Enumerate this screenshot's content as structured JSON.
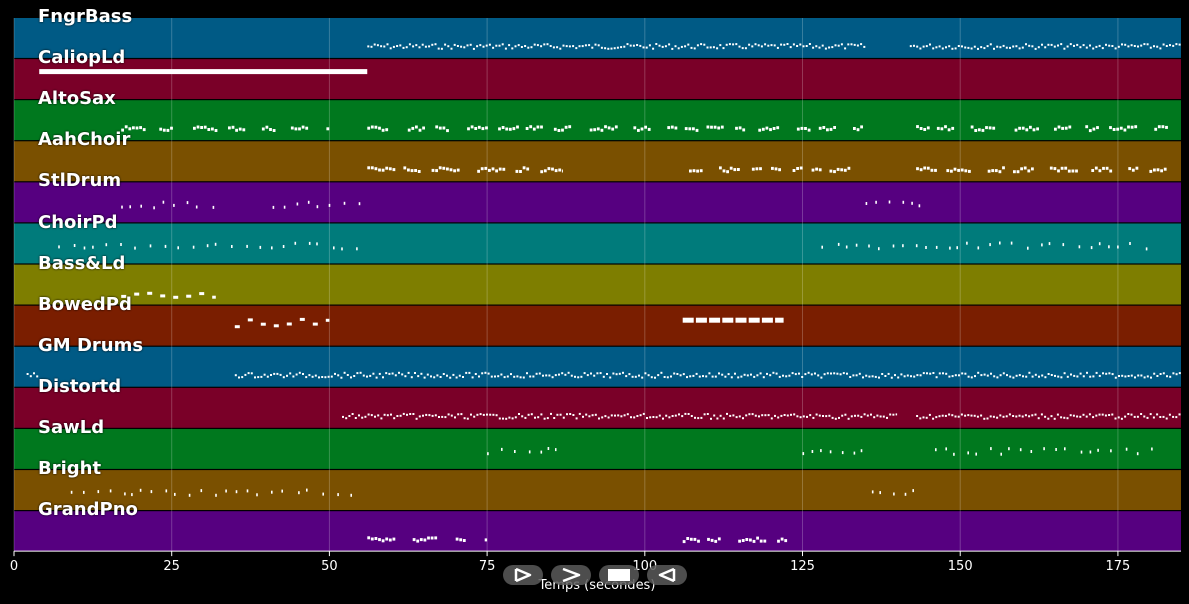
{
  "colors": {
    "background": "#000000",
    "note": "#ffffff",
    "track_palette": [
      "#005a85",
      "#7a0028",
      "#00781e",
      "#7a5000",
      "#560080",
      "#007b7b",
      "#7e7e00",
      "#7a1e00"
    ]
  },
  "tracks": [
    {
      "name": "FngrBass",
      "color": "#005a85"
    },
    {
      "name": "CaliopLd",
      "color": "#7a0028"
    },
    {
      "name": "AltoSax",
      "color": "#00781e"
    },
    {
      "name": "AahChoir",
      "color": "#7a5000"
    },
    {
      "name": "StlDrum",
      "color": "#560080"
    },
    {
      "name": "ChoirPd",
      "color": "#007b7b"
    },
    {
      "name": "Bass&Ld",
      "color": "#7e7e00"
    },
    {
      "name": "BowedPd",
      "color": "#7a1e00"
    },
    {
      "name": "GM Drums",
      "color": "#005a85"
    },
    {
      "name": "Distortd",
      "color": "#7a0028"
    },
    {
      "name": "SawLd",
      "color": "#00781e"
    },
    {
      "name": "Bright",
      "color": "#7a5000"
    },
    {
      "name": "GrandPno",
      "color": "#560080"
    }
  ],
  "chart_data": {
    "type": "piano-roll",
    "xlabel": "Temps (secondes)",
    "xlim": [
      0,
      185
    ],
    "xticks": [
      0,
      25,
      50,
      75,
      100,
      125,
      150,
      175
    ],
    "xtick_labels": [
      "0",
      "25",
      "50",
      "75",
      "100",
      "125",
      "150",
      "175"
    ],
    "grid": true,
    "regions": [
      {
        "track": 0,
        "start": 56,
        "end": 135,
        "style": "dense"
      },
      {
        "track": 0,
        "start": 142,
        "end": 185,
        "style": "dense"
      },
      {
        "track": 1,
        "start": 4,
        "end": 56,
        "style": "long"
      },
      {
        "track": 2,
        "start": 17,
        "end": 50,
        "style": "phrase"
      },
      {
        "track": 2,
        "start": 56,
        "end": 135,
        "style": "phrase"
      },
      {
        "track": 2,
        "start": 143,
        "end": 183,
        "style": "phrase"
      },
      {
        "track": 3,
        "start": 56,
        "end": 87,
        "style": "phrase"
      },
      {
        "track": 3,
        "start": 107,
        "end": 135,
        "style": "phrase"
      },
      {
        "track": 3,
        "start": 143,
        "end": 183,
        "style": "phrase"
      },
      {
        "track": 4,
        "start": 17,
        "end": 32,
        "style": "sparse"
      },
      {
        "track": 4,
        "start": 41,
        "end": 55,
        "style": "sparse"
      },
      {
        "track": 4,
        "start": 135,
        "end": 144,
        "style": "sparse"
      },
      {
        "track": 5,
        "start": 7,
        "end": 55,
        "style": "sparse"
      },
      {
        "track": 5,
        "start": 128,
        "end": 180,
        "style": "sparse"
      },
      {
        "track": 6,
        "start": 17,
        "end": 32,
        "style": "dashes"
      },
      {
        "track": 7,
        "start": 35,
        "end": 50,
        "style": "dashes"
      },
      {
        "track": 7,
        "start": 106,
        "end": 122,
        "style": "blocks"
      },
      {
        "track": 8,
        "start": 2,
        "end": 4,
        "style": "dense"
      },
      {
        "track": 8,
        "start": 35,
        "end": 185,
        "style": "dense"
      },
      {
        "track": 9,
        "start": 52,
        "end": 140,
        "style": "dense"
      },
      {
        "track": 9,
        "start": 143,
        "end": 185,
        "style": "dense"
      },
      {
        "track": 10,
        "start": 75,
        "end": 86,
        "style": "sparse"
      },
      {
        "track": 10,
        "start": 125,
        "end": 135,
        "style": "sparse"
      },
      {
        "track": 10,
        "start": 146,
        "end": 181,
        "style": "sparse"
      },
      {
        "track": 11,
        "start": 9,
        "end": 55,
        "style": "sparse"
      },
      {
        "track": 11,
        "start": 136,
        "end": 143,
        "style": "sparse"
      },
      {
        "track": 12,
        "start": 56,
        "end": 75,
        "style": "phrase"
      },
      {
        "track": 12,
        "start": 106,
        "end": 124,
        "style": "phrase"
      }
    ]
  },
  "controls": [
    {
      "name": "play-button",
      "icon": "play-outline-icon"
    },
    {
      "name": "forward-button",
      "icon": "chevron-right-icon"
    },
    {
      "name": "stop-button",
      "icon": "stop-icon"
    },
    {
      "name": "rewind-button",
      "icon": "play-reverse-outline-icon"
    }
  ]
}
